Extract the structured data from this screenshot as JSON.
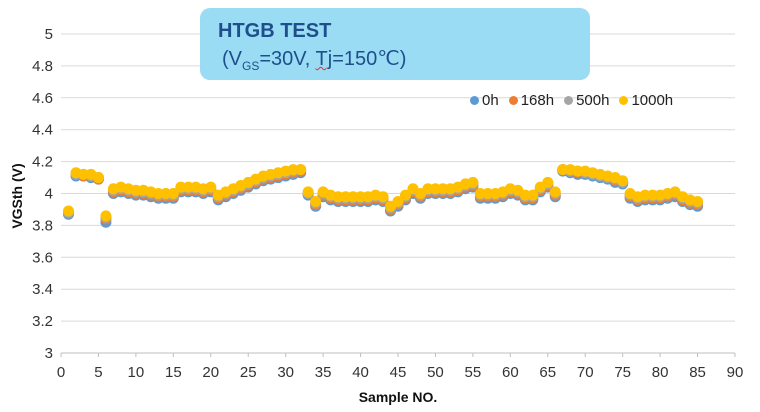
{
  "chart_data": {
    "type": "scatter",
    "title_main": "HTGB TEST",
    "title_sub": {
      "open": "(V",
      "sub": "GS",
      "mid": "=30V, ",
      "tj": "Tj",
      "rest": "=150℃)"
    },
    "xlabel": "Sample NO.",
    "ylabel": "VGSth (V)",
    "xlim": [
      0,
      90
    ],
    "ylim": [
      3,
      5
    ],
    "xticks": [
      "0",
      "5",
      "10",
      "15",
      "20",
      "25",
      "30",
      "35",
      "40",
      "45",
      "50",
      "55",
      "60",
      "65",
      "70",
      "75",
      "80",
      "85",
      "90"
    ],
    "yticks": [
      "3",
      "3.2",
      "3.4",
      "3.6",
      "3.8",
      "4",
      "4.2",
      "4.4",
      "4.6",
      "4.8",
      "5"
    ],
    "grid": "horizontal",
    "legend_position": "top-right",
    "x": [
      1,
      2,
      3,
      4,
      5,
      6,
      7,
      8,
      9,
      10,
      11,
      12,
      13,
      14,
      15,
      16,
      17,
      18,
      19,
      20,
      21,
      22,
      23,
      24,
      25,
      26,
      27,
      28,
      29,
      30,
      31,
      32,
      33,
      34,
      35,
      36,
      37,
      38,
      39,
      40,
      41,
      42,
      43,
      44,
      45,
      46,
      47,
      48,
      49,
      50,
      51,
      52,
      53,
      54,
      55,
      56,
      57,
      58,
      59,
      60,
      61,
      62,
      63,
      64,
      65,
      66,
      67,
      68,
      69,
      70,
      71,
      72,
      73,
      74,
      75,
      76,
      77,
      78,
      79,
      80,
      81,
      82,
      83,
      84,
      85
    ],
    "series": [
      {
        "name": "0h",
        "color": "#5b9bd5",
        "values": [
          3.87,
          4.11,
          4.11,
          4.1,
          4.09,
          3.82,
          4.0,
          4.01,
          4.0,
          3.99,
          3.99,
          3.98,
          3.97,
          3.97,
          3.97,
          4.01,
          4.01,
          4.01,
          4.0,
          4.01,
          3.96,
          3.98,
          4.0,
          4.02,
          4.04,
          4.06,
          4.08,
          4.09,
          4.1,
          4.11,
          4.12,
          4.13,
          3.99,
          3.92,
          3.98,
          3.96,
          3.95,
          3.95,
          3.95,
          3.95,
          3.95,
          3.96,
          3.95,
          3.89,
          3.92,
          3.96,
          4.0,
          3.97,
          4.0,
          4.0,
          4.0,
          4.0,
          4.01,
          4.03,
          4.04,
          3.97,
          3.97,
          3.97,
          3.98,
          4.0,
          3.99,
          3.96,
          3.96,
          4.01,
          4.04,
          3.98,
          4.14,
          4.13,
          4.12,
          4.12,
          4.11,
          4.1,
          4.09,
          4.07,
          4.06,
          3.97,
          3.95,
          3.96,
          3.96,
          3.96,
          3.97,
          3.98,
          3.95,
          3.93,
          3.92
        ]
      },
      {
        "name": "168h",
        "color": "#ed7d31",
        "values": [
          3.88,
          4.12,
          4.11,
          4.11,
          4.09,
          3.84,
          4.01,
          4.02,
          4.01,
          4.0,
          4.0,
          3.99,
          3.98,
          3.98,
          3.98,
          4.02,
          4.02,
          4.02,
          4.01,
          4.02,
          3.97,
          3.99,
          4.01,
          4.03,
          4.05,
          4.07,
          4.09,
          4.1,
          4.11,
          4.12,
          4.13,
          4.14,
          4.0,
          3.93,
          3.99,
          3.97,
          3.96,
          3.96,
          3.96,
          3.96,
          3.96,
          3.97,
          3.96,
          3.9,
          3.93,
          3.97,
          4.01,
          3.98,
          4.01,
          4.01,
          4.01,
          4.01,
          4.02,
          4.04,
          4.05,
          3.98,
          3.98,
          3.98,
          3.99,
          4.01,
          4.0,
          3.97,
          3.97,
          4.02,
          4.05,
          3.99,
          4.15,
          4.14,
          4.13,
          4.13,
          4.12,
          4.11,
          4.1,
          4.08,
          4.07,
          3.98,
          3.96,
          3.97,
          3.97,
          3.97,
          3.98,
          3.99,
          3.96,
          3.94,
          3.93
        ]
      },
      {
        "name": "500h",
        "color": "#a5a5a5",
        "values": [
          3.88,
          4.12,
          4.12,
          4.11,
          4.1,
          3.85,
          4.02,
          4.03,
          4.02,
          4.01,
          4.01,
          4.0,
          3.99,
          3.99,
          3.99,
          4.03,
          4.03,
          4.03,
          4.02,
          4.03,
          3.98,
          4.0,
          4.02,
          4.04,
          4.06,
          4.08,
          4.1,
          4.11,
          4.12,
          4.13,
          4.14,
          4.15,
          4.0,
          3.94,
          4.0,
          3.98,
          3.97,
          3.97,
          3.97,
          3.97,
          3.97,
          3.98,
          3.97,
          3.91,
          3.94,
          3.98,
          4.02,
          3.99,
          4.02,
          4.02,
          4.02,
          4.02,
          4.03,
          4.05,
          4.06,
          3.99,
          3.99,
          3.99,
          4.0,
          4.02,
          4.01,
          3.98,
          3.98,
          4.03,
          4.06,
          4.0,
          4.15,
          4.14,
          4.14,
          4.13,
          4.12,
          4.11,
          4.1,
          4.09,
          4.07,
          3.99,
          3.97,
          3.98,
          3.98,
          3.98,
          3.99,
          4.0,
          3.97,
          3.95,
          3.94
        ]
      },
      {
        "name": "1000h",
        "color": "#ffc000",
        "values": [
          3.89,
          4.13,
          4.12,
          4.12,
          4.1,
          3.86,
          4.03,
          4.04,
          4.03,
          4.02,
          4.02,
          4.01,
          4.0,
          4.0,
          4.0,
          4.04,
          4.04,
          4.04,
          4.03,
          4.04,
          3.99,
          4.01,
          4.03,
          4.05,
          4.07,
          4.09,
          4.11,
          4.12,
          4.13,
          4.14,
          4.15,
          4.15,
          4.01,
          3.95,
          4.01,
          3.99,
          3.98,
          3.98,
          3.98,
          3.98,
          3.98,
          3.99,
          3.98,
          3.92,
          3.95,
          3.99,
          4.03,
          4.0,
          4.03,
          4.03,
          4.03,
          4.03,
          4.04,
          4.06,
          4.07,
          4.0,
          4.0,
          4.0,
          4.01,
          4.03,
          4.02,
          3.99,
          3.99,
          4.04,
          4.07,
          4.01,
          4.15,
          4.15,
          4.14,
          4.14,
          4.13,
          4.12,
          4.11,
          4.1,
          4.08,
          4.0,
          3.98,
          3.99,
          3.99,
          3.99,
          4.0,
          4.01,
          3.98,
          3.96,
          3.95
        ]
      }
    ]
  }
}
